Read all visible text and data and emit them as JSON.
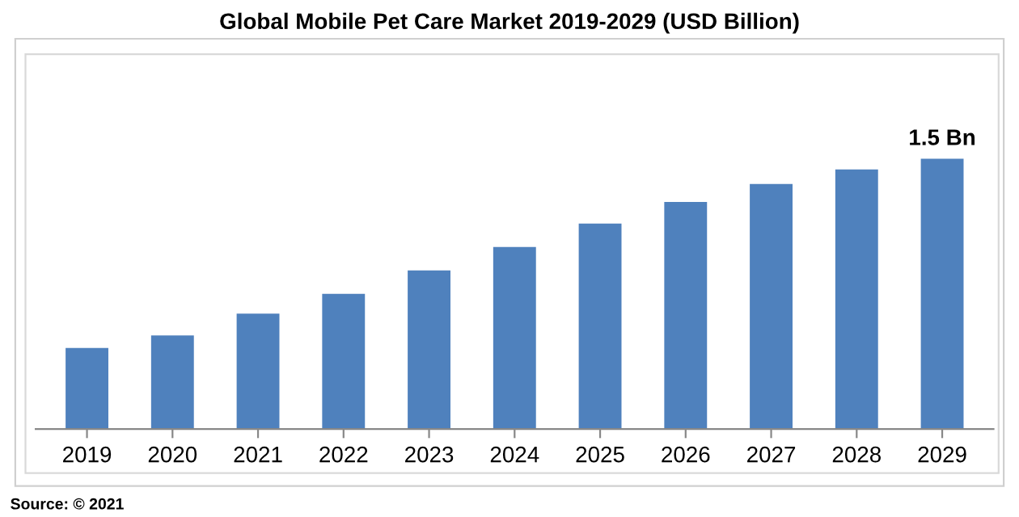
{
  "chart_data": {
    "type": "bar",
    "title": "Global Mobile Pet Care Market 2019-2029 (USD Billion)",
    "categories": [
      "2019",
      "2020",
      "2021",
      "2022",
      "2023",
      "2024",
      "2025",
      "2026",
      "2027",
      "2028",
      "2029"
    ],
    "values": [
      0.45,
      0.52,
      0.64,
      0.75,
      0.88,
      1.01,
      1.14,
      1.26,
      1.36,
      1.44,
      1.5
    ],
    "value_labels": [
      null,
      null,
      null,
      null,
      null,
      null,
      null,
      null,
      null,
      null,
      "1.5 Bn"
    ],
    "color": "#4f81bd",
    "grid": false,
    "legend": false,
    "annotations": [
      "Source: © 2021"
    ]
  }
}
